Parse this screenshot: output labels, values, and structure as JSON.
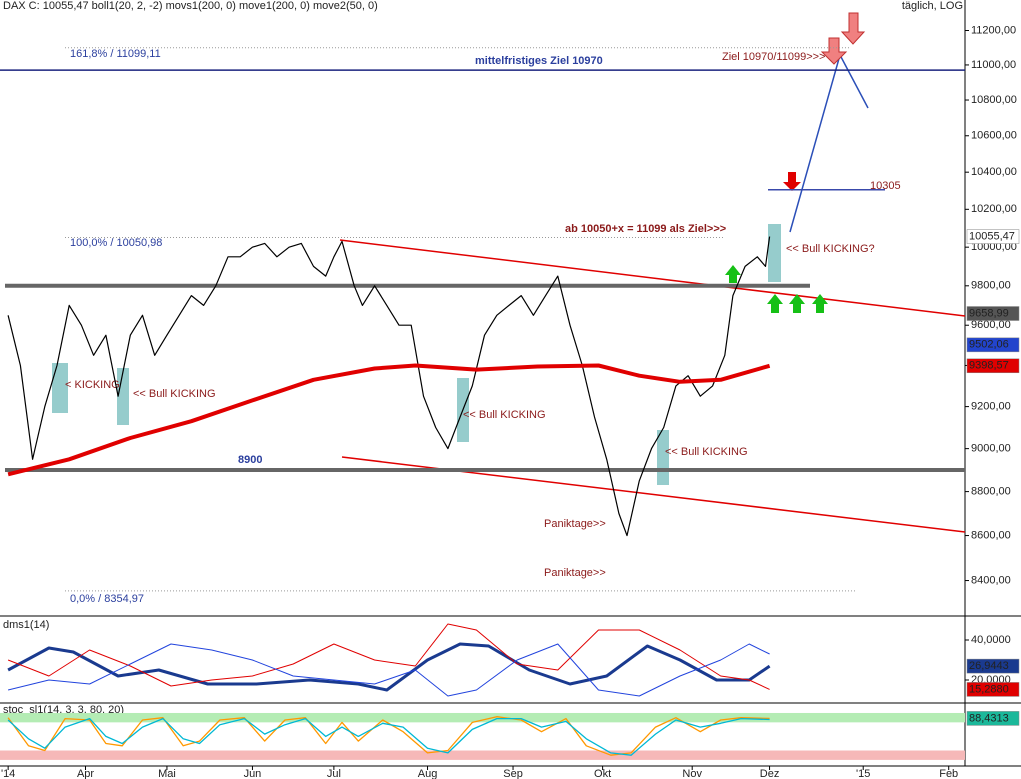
{
  "chart_data": [
    {
      "type": "line",
      "title": "DAX C: 10055,47 boll1(20, 2, -2) movs1(200, 0) move1(200, 0) move2(50, 0)",
      "subtitle": "täglich, LOG",
      "log_scale": true,
      "ylim": [
        8250,
        11380
      ],
      "yticks": [
        {
          "value": 8400,
          "label": "8400,00"
        },
        {
          "value": 8600,
          "label": "8600,00"
        },
        {
          "value": 8800,
          "label": "8800,00"
        },
        {
          "value": 9000,
          "label": "9000,00"
        },
        {
          "value": 9200,
          "label": "9200,00"
        },
        {
          "value": 9400,
          "label": "9400,00"
        },
        {
          "value": 9600,
          "label": "9600,00"
        },
        {
          "value": 9800,
          "label": "9800,00"
        },
        {
          "value": 10000,
          "label": "10000,00"
        },
        {
          "value": 10200,
          "label": "10200,00"
        },
        {
          "value": 10400,
          "label": "10400,00"
        },
        {
          "value": 10600,
          "label": "10600,00"
        },
        {
          "value": 10800,
          "label": "10800,00"
        },
        {
          "value": 11000,
          "label": "11000,00"
        },
        {
          "value": 11200,
          "label": "11200,00"
        }
      ],
      "xlim": [
        -2,
        235
      ],
      "xticks": [
        {
          "value": 0,
          "label": "'14"
        },
        {
          "value": 19,
          "label": "Apr"
        },
        {
          "value": 39,
          "label": "Mai"
        },
        {
          "value": 60,
          "label": "Jun"
        },
        {
          "value": 80,
          "label": "Jul"
        },
        {
          "value": 103,
          "label": "Aug"
        },
        {
          "value": 124,
          "label": "Sep"
        },
        {
          "value": 146,
          "label": "Okt"
        },
        {
          "value": 168,
          "label": "Nov"
        },
        {
          "value": 187,
          "label": "Dez"
        },
        {
          "value": 210,
          "label": "'15"
        },
        {
          "value": 231,
          "label": "Feb"
        }
      ],
      "series": [
        {
          "color": "#000000",
          "x": [
            0,
            3,
            6,
            9,
            12,
            15,
            18,
            21,
            24,
            27,
            30,
            33,
            36,
            39,
            42,
            45,
            48,
            51,
            54,
            57,
            60,
            63,
            66,
            69,
            72,
            75,
            78,
            80,
            82,
            85,
            87,
            90,
            93,
            96,
            99,
            102,
            105,
            108,
            111,
            114,
            117,
            120,
            123,
            126,
            129,
            132,
            135,
            138,
            141,
            144,
            147,
            150,
            152,
            155,
            158,
            161,
            164,
            167,
            170,
            173,
            176,
            178,
            181,
            184,
            186,
            187
          ],
          "values": [
            9650,
            9400,
            8950,
            9200,
            9400,
            9700,
            9600,
            9450,
            9550,
            9250,
            9550,
            9650,
            9450,
            9550,
            9650,
            9750,
            9700,
            9800,
            9950,
            9950,
            10000,
            10020,
            9950,
            10000,
            10020,
            9900,
            9850,
            9950,
            10030,
            9800,
            9700,
            9800,
            9700,
            9600,
            9600,
            9250,
            9100,
            9000,
            9150,
            9300,
            9550,
            9650,
            9700,
            9750,
            9650,
            9750,
            9850,
            9600,
            9400,
            9150,
            8950,
            8700,
            8600,
            8850,
            9000,
            9100,
            9300,
            9350,
            9250,
            9300,
            9450,
            9750,
            9900,
            9950,
            9900,
            10055.47
          ]
        },
        {
          "color": "#e00000",
          "x": [
            0,
            15,
            30,
            45,
            60,
            75,
            90,
            100,
            115,
            130,
            145,
            155,
            165,
            175,
            187
          ],
          "values": [
            8880,
            8950,
            9050,
            9130,
            9230,
            9330,
            9385,
            9400,
            9380,
            9395,
            9400,
            9350,
            9320,
            9330,
            9398.57
          ]
        }
      ],
      "hlines": [
        {
          "value": 11099.11,
          "color": "#999999",
          "style": "dotted"
        },
        {
          "value": 10970,
          "color": "#1a237e",
          "style": "solid"
        },
        {
          "value": 10305,
          "color": "#3949ab",
          "style": "solid"
        },
        {
          "value": 10050.98,
          "color": "#999999",
          "style": "dotted"
        },
        {
          "value": 9800,
          "color": "#666666",
          "style": "solid"
        },
        {
          "value": 8900,
          "color": "#666666",
          "style": "solid"
        },
        {
          "value": 8354.97,
          "color": "#999999",
          "style": "dotted"
        }
      ],
      "markers": [
        {
          "value": 10055.47,
          "label": "10055,47",
          "color": "#ffffff",
          "text_color": "#000000"
        },
        {
          "value": 9658.99,
          "label": "9658,99",
          "color": "#555555",
          "text_color": "#ffffff"
        },
        {
          "value": 9502.06,
          "label": "9502,06",
          "color": "#2244cc",
          "text_color": "#ffffff"
        },
        {
          "value": 9398.57,
          "label": "9398,57",
          "color": "#e00000",
          "text_color": "#ffffff"
        }
      ],
      "annotations": [
        "161,8% / 11099,11",
        "mittelfristiges Ziel 10970",
        "Ziel 10970/11099>>>",
        "10305",
        "100,0% / 10050,98",
        "ab 10050+x = 11099 als Ziel>>>",
        "<< Bull KICKING?",
        "< KICKING",
        "<< Bull KICKING",
        "<< Bull KICKING",
        "<< Bull KICKING",
        "8900",
        "Paniktage>>",
        "Paniktage>>",
        "0,0% / 8354,97"
      ]
    },
    {
      "type": "line",
      "title": "dms1(14)",
      "ylim": [
        9,
        51
      ],
      "yticks": [
        {
          "value": 20,
          "label": "20,0000"
        },
        {
          "value": 40,
          "label": "40,0000"
        }
      ],
      "series": [
        {
          "color": "#1a3a8f",
          "x": [
            0,
            10,
            16,
            27,
            37,
            49,
            61,
            74,
            86,
            93,
            103,
            111,
            118,
            128,
            138,
            147,
            157,
            165,
            174,
            182,
            187
          ],
          "values": [
            25,
            36,
            34,
            22,
            25,
            18,
            18,
            20,
            18,
            15,
            30,
            38,
            37,
            25,
            18,
            22,
            37,
            30,
            20,
            20,
            26.9443
          ]
        },
        {
          "color": "#e00000",
          "x": [
            0,
            10,
            20,
            30,
            40,
            50,
            60,
            70,
            80,
            90,
            100,
            108,
            115,
            125,
            135,
            145,
            155,
            165,
            175,
            182,
            187
          ],
          "values": [
            30,
            22,
            35,
            27,
            17,
            20,
            22,
            28,
            38,
            30,
            27,
            48,
            45,
            28,
            25,
            45,
            45,
            35,
            22,
            20,
            15.288
          ]
        },
        {
          "color": "#2244dd",
          "x": [
            0,
            10,
            20,
            30,
            40,
            50,
            60,
            70,
            80,
            90,
            100,
            108,
            115,
            125,
            135,
            145,
            155,
            165,
            175,
            182,
            187
          ],
          "values": [
            15,
            20,
            18,
            28,
            38,
            35,
            30,
            22,
            20,
            18,
            25,
            12,
            15,
            30,
            38,
            15,
            12,
            22,
            30,
            38,
            33
          ]
        }
      ],
      "markers": [
        {
          "value": 26.9443,
          "label": "26,9443",
          "color": "#1a3a8f",
          "text_color": "#ffffff"
        },
        {
          "value": 15.288,
          "label": "15,2880",
          "color": "#e00000",
          "text_color": "#ffffff"
        }
      ]
    },
    {
      "type": "line",
      "title": "stoc_sl1(14, 3, 3, 80, 20)",
      "ylim": [
        -13,
        117
      ],
      "zones": [
        {
          "from": 80,
          "to": 100,
          "color": "#b4ecb4"
        },
        {
          "from": 0,
          "to": 20,
          "color": "#f6b8b8"
        }
      ],
      "series": [
        {
          "color": "#ff9800",
          "x": [
            0,
            5,
            9,
            14,
            20,
            24,
            28,
            33,
            38,
            43,
            47,
            52,
            58,
            63,
            68,
            73,
            78,
            82,
            86,
            92,
            97,
            103,
            108,
            114,
            120,
            126,
            131,
            137,
            142,
            148,
            153,
            159,
            164,
            170,
            175,
            180,
            187
          ],
          "values": [
            90,
            30,
            20,
            88,
            85,
            35,
            30,
            85,
            90,
            30,
            40,
            85,
            90,
            40,
            85,
            90,
            35,
            80,
            40,
            85,
            60,
            15,
            20,
            80,
            92,
            85,
            60,
            88,
            30,
            10,
            15,
            70,
            90,
            60,
            85,
            90,
            88.4313
          ]
        },
        {
          "color": "#00b8d4",
          "x": [
            0,
            5,
            9,
            14,
            20,
            24,
            28,
            33,
            38,
            43,
            47,
            52,
            58,
            63,
            68,
            73,
            78,
            82,
            86,
            92,
            97,
            103,
            108,
            114,
            120,
            126,
            131,
            137,
            142,
            148,
            153,
            159,
            164,
            170,
            175,
            180,
            187
          ],
          "values": [
            85,
            45,
            25,
            70,
            88,
            50,
            35,
            70,
            88,
            45,
            35,
            75,
            88,
            55,
            75,
            88,
            50,
            70,
            50,
            78,
            70,
            25,
            15,
            65,
            88,
            88,
            70,
            82,
            45,
            15,
            10,
            55,
            85,
            70,
            78,
            88,
            86
          ]
        }
      ],
      "markers": [
        {
          "value": 88.4313,
          "label": "88,4313",
          "color": "#1bb89a",
          "text_color": "#ffffff"
        }
      ]
    }
  ]
}
